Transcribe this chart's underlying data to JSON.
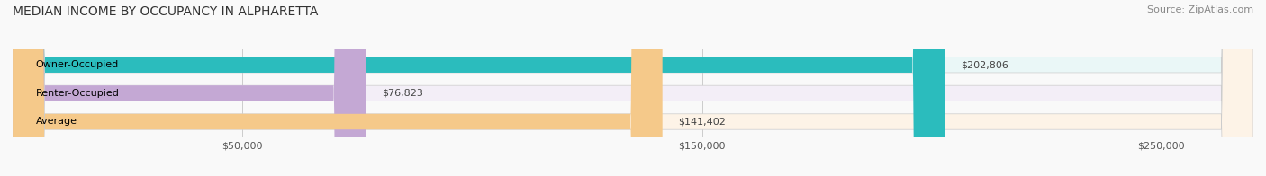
{
  "title": "MEDIAN INCOME BY OCCUPANCY IN ALPHARETTA",
  "source": "Source: ZipAtlas.com",
  "categories": [
    "Owner-Occupied",
    "Renter-Occupied",
    "Average"
  ],
  "values": [
    202806,
    76823,
    141402
  ],
  "labels": [
    "$202,806",
    "$76,823",
    "$141,402"
  ],
  "bar_colors": [
    "#2bbcbd",
    "#c4a8d4",
    "#f5c98a"
  ],
  "bar_bg_colors": [
    "#eaf7f7",
    "#f3eef7",
    "#fdf3e7"
  ],
  "xlim": [
    0,
    270000
  ],
  "xticks": [
    50000,
    150000,
    250000
  ],
  "xtick_labels": [
    "$50,000",
    "$150,000",
    "$250,000"
  ],
  "title_fontsize": 10,
  "source_fontsize": 8,
  "label_fontsize": 8,
  "bar_label_fontsize": 8,
  "background_color": "#f9f9f9"
}
